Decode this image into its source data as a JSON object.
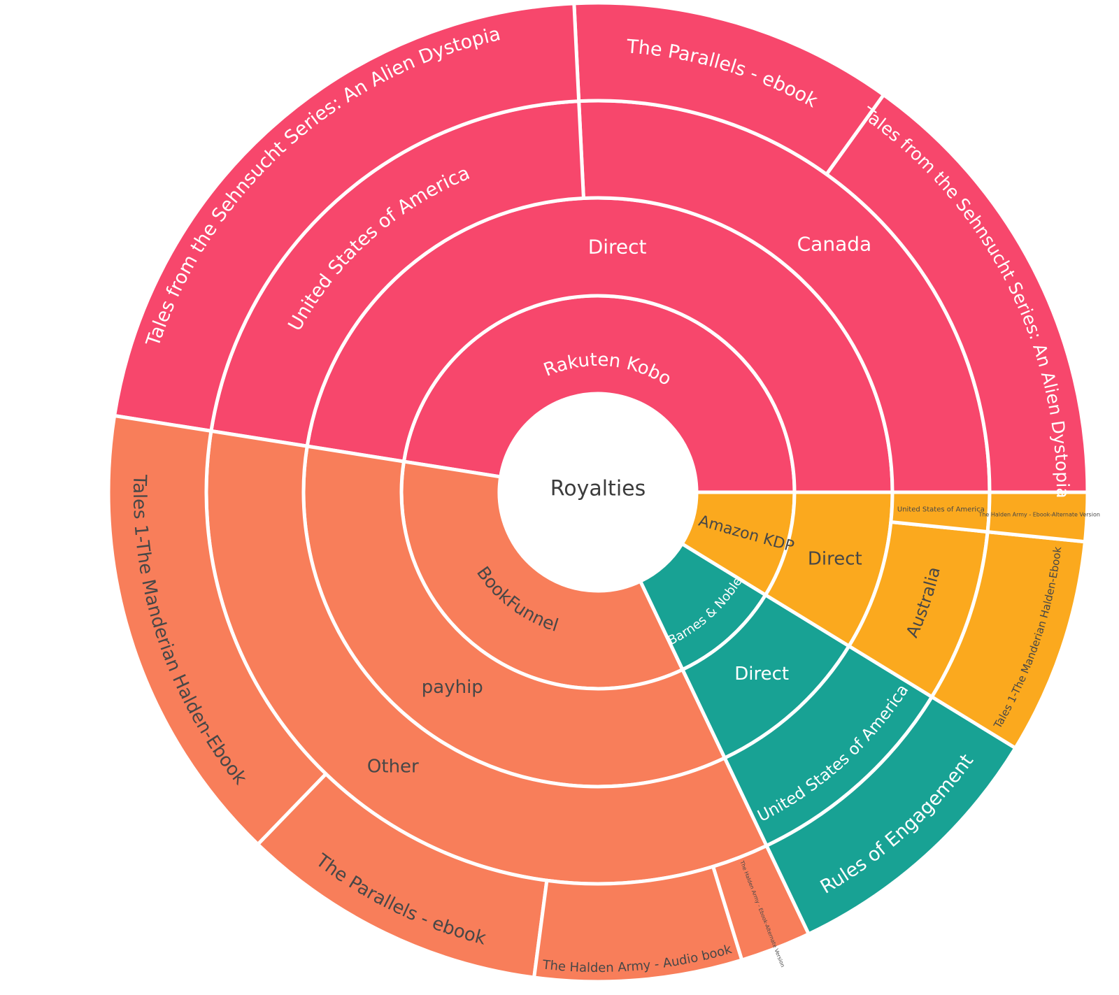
{
  "page": {
    "background": "#ffffff"
  },
  "chart_data": {
    "type": "sunburst",
    "center_label": "Royalties",
    "rings": 4,
    "legend": "none",
    "grid": "off",
    "angle_convention": "degrees counterclockwise from 3 o'clock, measured from image",
    "colors": {
      "pink": "#F7476C",
      "orange": "#F87E5A",
      "teal": "#18A294",
      "amber": "#FBA91E",
      "label_dark": "#474747",
      "label_light": "#FFFFFF",
      "center_text": "#3C3C3C",
      "divider": "#FFFFFF"
    },
    "nodes": [
      {
        "name": "Rakuten Kobo",
        "color_key": "pink",
        "share_pct": 47.5,
        "a0": 0,
        "a1": 171,
        "label": {
          "mode": "curved",
          "size": 26,
          "fill": "#FFFFFF",
          "path_r": 181
        },
        "children": [
          {
            "name": "Direct",
            "share_pct": 47.5,
            "a0": 0,
            "a1": 171,
            "label": {
              "mode": "h",
              "size": 28,
              "fill": "#FFFFFF",
              "r": 352
            },
            "children": [
              {
                "name": "Canada",
                "share_pct": 25.8,
                "a0": 0,
                "a1": 92.8,
                "label": {
                  "mode": "h",
                  "size": 28,
                  "fill": "#FFFFFF",
                  "r": 490
                },
                "children": [
                  {
                    "name": "Tales from the Sehnsucht Series: An Alien Dystopia",
                    "share_pct": 15.1,
                    "a0": 0,
                    "a1": 54.3,
                    "label": {
                      "mode": "curved",
                      "size": 25,
                      "fill": "#FFFFFF",
                      "path_r": 656
                    }
                  },
                  {
                    "name": "The Parallels - ebook",
                    "share_pct": 10.7,
                    "a0": 54.3,
                    "a1": 92.8,
                    "label": {
                      "mode": "curved",
                      "size": 27,
                      "fill": "#FFFFFF",
                      "path_r": 630
                    }
                  }
                ]
              },
              {
                "name": "United States of America",
                "share_pct": 21.7,
                "a0": 92.8,
                "a1": 171,
                "label": {
                  "mode": "curved",
                  "size": 27,
                  "fill": "#FFFFFF",
                  "path_r": 485
                },
                "children": [
                  {
                    "name": "Tales from the Sehnsucht Series: An Alien Dystopia",
                    "share_pct": 21.7,
                    "a0": 92.8,
                    "a1": 171,
                    "label": {
                      "mode": "curved",
                      "size": 27,
                      "fill": "#FFFFFF",
                      "path_r": 662
                    }
                  }
                ]
              }
            ]
          }
        ]
      },
      {
        "name": "BookFunnel",
        "color_key": "orange",
        "share_pct": 34.6,
        "a0": 171,
        "a1": 295.5,
        "label": {
          "mode": "curved",
          "size": 25,
          "fill": "#474747",
          "path_r": 208
        },
        "children": [
          {
            "name": "payhip",
            "share_pct": 34.6,
            "a0": 171,
            "a1": 295.5,
            "label": {
              "mode": "h",
              "size": 26,
              "fill": "#474747",
              "r": 348
            },
            "children": [
              {
                "name": "Other",
                "share_pct": 34.6,
                "a0": 171,
                "a1": 295.5,
                "label": {
                  "mode": "h",
                  "size": 26,
                  "fill": "#474747",
                  "r": 490
                },
                "children": [
                  {
                    "name": "Tales 1-The Manderian Halden-Ebook",
                    "share_pct": 15.3,
                    "a0": 171,
                    "a1": 226,
                    "label": {
                      "mode": "curved",
                      "size": 26,
                      "fill": "#474747",
                      "path_r": 664
                    }
                  },
                  {
                    "name": "The Parallels - ebook",
                    "share_pct": 10.1,
                    "a0": 226,
                    "a1": 262.5,
                    "label": {
                      "mode": "curved",
                      "size": 26,
                      "fill": "#474747",
                      "path_r": 667
                    }
                  },
                  {
                    "name": "The Halden Army - Audio book",
                    "share_pct": 6.8,
                    "a0": 262.5,
                    "a1": 287.1,
                    "label": {
                      "mode": "curved",
                      "size": 18,
                      "fill": "#474747",
                      "path_r": 686
                    }
                  },
                  {
                    "name": "The Halden Army - Ebook-Alternate Version",
                    "share_pct": 2.3,
                    "a0": 287.1,
                    "a1": 295.5,
                    "label": {
                      "mode": "radial",
                      "size": 7.5,
                      "fill": "#474747",
                      "r_in": 566
                    }
                  }
                ]
              }
            ]
          }
        ]
      },
      {
        "name": "Barnes & Noble",
        "color_key": "teal",
        "share_pct": 9.2,
        "a0": 295.5,
        "a1": 328.5,
        "label": {
          "mode": "curved",
          "size": 18,
          "fill": "#FFFFFF",
          "path_r": 242
        },
        "children": [
          {
            "name": "Direct",
            "share_pct": 9.2,
            "a0": 295.5,
            "a1": 328.5,
            "label": {
              "mode": "h",
              "size": 26,
              "fill": "#FFFFFF",
              "r": 350
            },
            "children": [
              {
                "name": "United States of America",
                "share_pct": 9.2,
                "a0": 295.5,
                "a1": 328.5,
                "label": {
                  "mode": "curved",
                  "size": 23,
                  "fill": "#FFFFFF",
                  "path_r": 526
                },
                "children": [
                  {
                    "name": "Rules of Engagement",
                    "share_pct": 9.2,
                    "a0": 295.5,
                    "a1": 328.5,
                    "label": {
                      "mode": "curved",
                      "size": 27,
                      "fill": "#FFFFFF",
                      "path_r": 660
                    }
                  }
                ]
              }
            ]
          }
        ]
      },
      {
        "name": "Amazon KDP",
        "color_key": "amber",
        "share_pct": 8.8,
        "a0": 328.5,
        "a1": 360,
        "label": {
          "mode": "radial",
          "size": 22,
          "fill": "#474747",
          "r_in": 150
        },
        "children": [
          {
            "name": "Direct",
            "share_pct": 8.8,
            "a0": 328.5,
            "a1": 360,
            "label": {
              "mode": "h",
              "size": 26,
              "fill": "#474747",
              "r": 352
            },
            "children": [
              {
                "name": "Australia",
                "share_pct": 7.1,
                "a0": 328.5,
                "a1": 354.2,
                "label": {
                  "mode": "curved",
                  "size": 24,
                  "fill": "#474747",
                  "path_r": 501
                },
                "children": [
                  {
                    "name": "Tales 1-The Manderian Halden-Ebook",
                    "share_pct": 7.1,
                    "a0": 328.5,
                    "a1": 354.2,
                    "label": {
                      "mode": "curved",
                      "size": 15,
                      "fill": "#474747",
                      "path_r": 667
                    }
                  }
                ]
              },
              {
                "name": "United States of America",
                "share_pct": 1.6,
                "a0": 354.2,
                "a1": 360,
                "label": {
                  "mode": "h",
                  "size": 10,
                  "fill": "#474747",
                  "r": 491
                },
                "children": [
                  {
                    "name": "The Halden Army - Ebook-Alternate Version",
                    "share_pct": 1.6,
                    "a0": 354.2,
                    "a1": 360,
                    "label": {
                      "mode": "h",
                      "size": 8,
                      "fill": "#474747",
                      "r": 632
                    }
                  }
                ]
              }
            ]
          }
        ]
      }
    ]
  }
}
